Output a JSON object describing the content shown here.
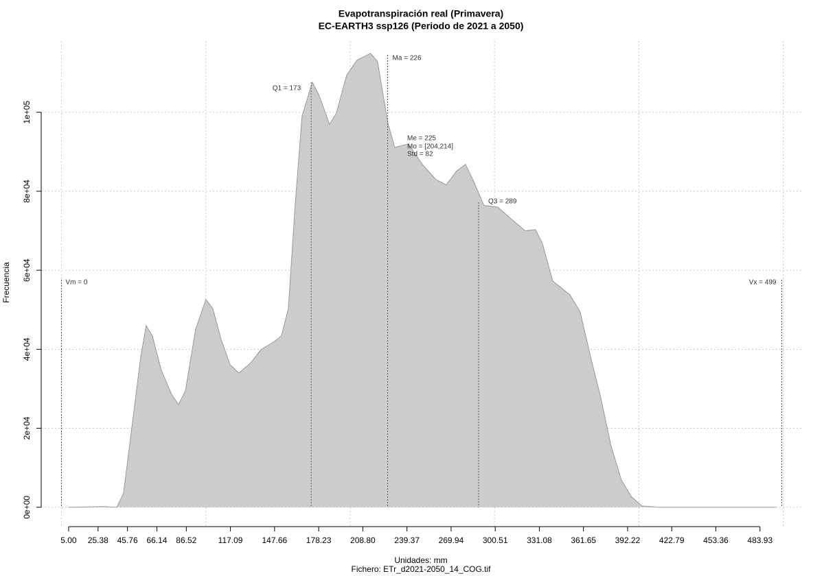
{
  "chart_data": {
    "type": "area",
    "title": "Evapotranspiración real (Primavera)",
    "subtitle": "EC-EARTH3 ssp126 (Periodo de 2021 a 2050)",
    "x_label": "Unidades: mm",
    "caption": "Fichero: ETr_d2021-2050_14_COG.tif",
    "y_label": "Frecuencia",
    "color": "#cccccc",
    "line_color": "#999999",
    "grid": true,
    "x": [
      5,
      28.8,
      38.3,
      43,
      50.2,
      55,
      58.7,
      63,
      69.2,
      76.3,
      81.1,
      85.9,
      93,
      100.1,
      104.9,
      110.6,
      116.8,
      123,
      131,
      138.2,
      147.7,
      152.4,
      157.2,
      161.9,
      166.7,
      173.8,
      178.6,
      185.7,
      190.5,
      197.6,
      204.8,
      214.3,
      219,
      226.2,
      230.9,
      240.4,
      250,
      259.4,
      266.6,
      273.7,
      279.9,
      285.6,
      292.7,
      302.3,
      311.8,
      321.3,
      328.4,
      333.2,
      340.3,
      352.2,
      359.3,
      366.5,
      373.6,
      380.7,
      387.9,
      395,
      402.1,
      414,
      494.9
    ],
    "values": [
      0,
      170,
      0,
      3470,
      24300,
      38200,
      46000,
      43400,
      34700,
      28600,
      26000,
      29500,
      45100,
      52600,
      50300,
      42500,
      36100,
      34000,
      36500,
      39900,
      42000,
      43400,
      50300,
      76400,
      99000,
      107600,
      104200,
      96900,
      99800,
      109400,
      113200,
      114900,
      112800,
      97200,
      91100,
      92000,
      86800,
      83000,
      81600,
      85100,
      86800,
      82500,
      76400,
      76000,
      72900,
      70000,
      70300,
      66800,
      57300,
      53800,
      49500,
      38200,
      27800,
      15600,
      6900,
      2600,
      350,
      0,
      0
    ],
    "xlim": [
      -14,
      514
    ],
    "ylim": [
      -4900,
      118000
    ],
    "xticks": [
      {
        "value": 5,
        "label": "5.00"
      },
      25.38,
      45.76,
      66.14,
      86.52,
      117.09,
      147.66,
      178.23,
      {
        "value": 208.8,
        "label": "208.80"
      },
      239.37,
      269.94,
      300.51,
      331.08,
      361.65,
      392.22,
      422.79,
      453.36,
      483.93
    ],
    "xgrid": [
      0,
      100,
      200,
      300,
      400,
      500
    ],
    "yticks": [
      {
        "value": 0,
        "label": "0e+00"
      },
      {
        "value": 20000,
        "label": "2e+04"
      },
      {
        "value": 40000,
        "label": "4e+04"
      },
      {
        "value": 60000,
        "label": "6e+04"
      },
      {
        "value": 80000,
        "label": "8e+04"
      },
      {
        "value": 100000,
        "label": "1e+05"
      }
    ],
    "annotations": [
      {
        "label": "Vm = 0",
        "x": 0
      },
      {
        "label": "Q1 = 173",
        "x": 173
      },
      {
        "label": "Ma = 226",
        "x": 226
      },
      {
        "label": "Me = 225"
      },
      {
        "label": "Mo = [204,214]"
      },
      {
        "label": "Std = 82"
      },
      {
        "label": "Q3 = 289",
        "x": 289
      },
      {
        "label": "Vx = 499",
        "x": 499
      }
    ]
  }
}
